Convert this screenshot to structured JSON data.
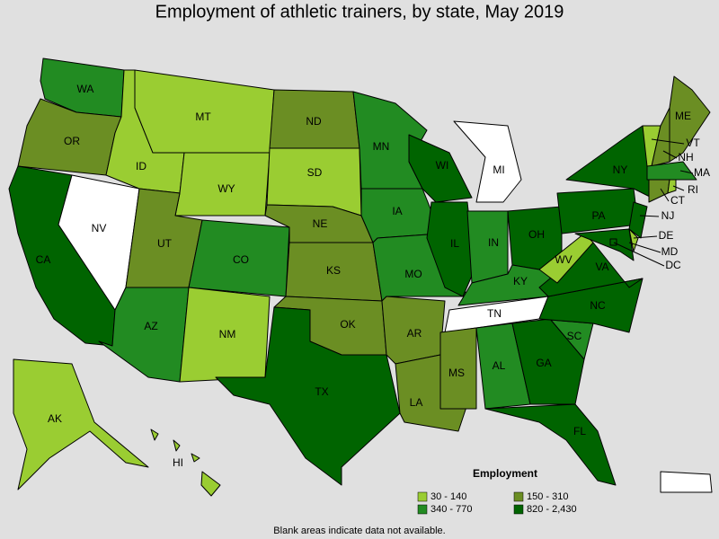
{
  "title": "Employment of athletic trainers, by state, May 2019",
  "states": [
    {
      "label": "WA",
      "employment": "340 - 770"
    },
    {
      "label": "OR",
      "employment": "150 - 310"
    },
    {
      "label": "CA",
      "employment": "820 - 2,430"
    },
    {
      "label": "NV",
      "employment": null
    },
    {
      "label": "ID",
      "employment": "30 - 140"
    },
    {
      "label": "MT",
      "employment": "30 - 140"
    },
    {
      "label": "WY",
      "employment": "30 - 140"
    },
    {
      "label": "UT",
      "employment": "150 - 310"
    },
    {
      "label": "CO",
      "employment": "340 - 770"
    },
    {
      "label": "AZ",
      "employment": "340 - 770"
    },
    {
      "label": "NM",
      "employment": "30 - 140"
    },
    {
      "label": "ND",
      "employment": "150 - 310"
    },
    {
      "label": "SD",
      "employment": "30 - 140"
    },
    {
      "label": "NE",
      "employment": "150 - 310"
    },
    {
      "label": "KS",
      "employment": "150 - 310"
    },
    {
      "label": "OK",
      "employment": "150 - 310"
    },
    {
      "label": "TX",
      "employment": "820 - 2,430"
    },
    {
      "label": "MN",
      "employment": "340 - 770"
    },
    {
      "label": "IA",
      "employment": "340 - 770"
    },
    {
      "label": "MO",
      "employment": "340 - 770"
    },
    {
      "label": "AR",
      "employment": "150 - 310"
    },
    {
      "label": "LA",
      "employment": "150 - 310"
    },
    {
      "label": "WI",
      "employment": "820 - 2,430"
    },
    {
      "label": "IL",
      "employment": "820 - 2,430"
    },
    {
      "label": "MI",
      "employment": null
    },
    {
      "label": "IN",
      "employment": "340 - 770"
    },
    {
      "label": "OH",
      "employment": "820 - 2,430"
    },
    {
      "label": "KY",
      "employment": "340 - 770"
    },
    {
      "label": "TN",
      "employment": null
    },
    {
      "label": "MS",
      "employment": "150 - 310"
    },
    {
      "label": "AL",
      "employment": "340 - 770"
    },
    {
      "label": "GA",
      "employment": "820 - 2,430"
    },
    {
      "label": "FL",
      "employment": "820 - 2,430"
    },
    {
      "label": "SC",
      "employment": "340 - 770"
    },
    {
      "label": "NC",
      "employment": "820 - 2,430"
    },
    {
      "label": "VA",
      "employment": "820 - 2,430"
    },
    {
      "label": "WV",
      "employment": "30 - 140"
    },
    {
      "label": "PA",
      "employment": "820 - 2,430"
    },
    {
      "label": "NY",
      "employment": "820 - 2,430"
    },
    {
      "label": "NJ",
      "employment": "820 - 2,430"
    },
    {
      "label": "DE",
      "employment": "30 - 140"
    },
    {
      "label": "MD",
      "employment": "820 - 2,430"
    },
    {
      "label": "DC",
      "employment": "820 - 2,430"
    },
    {
      "label": "VT",
      "employment": "30 - 140"
    },
    {
      "label": "NH",
      "employment": "150 - 310"
    },
    {
      "label": "ME",
      "employment": "150 - 310"
    },
    {
      "label": "MA",
      "employment": "340 - 770"
    },
    {
      "label": "CT",
      "employment": "150 - 310"
    },
    {
      "label": "RI",
      "employment": "30 - 140"
    },
    {
      "label": "AK",
      "employment": "30 - 140"
    },
    {
      "label": "HI",
      "employment": "30 - 140"
    }
  ],
  "legend": {
    "title": "Employment",
    "items": [
      {
        "label": "30 - 140",
        "color": "#9acd32"
      },
      {
        "label": "150 - 310",
        "color": "#6b8e23"
      },
      {
        "label": "340 - 770",
        "color": "#228b22"
      },
      {
        "label": "820 - 2,430",
        "color": "#006400"
      }
    ]
  },
  "note": "Blank areas indicate data not available."
}
